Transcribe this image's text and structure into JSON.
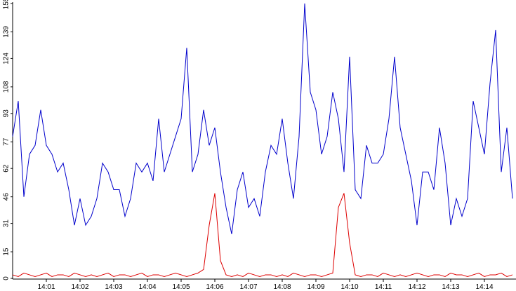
{
  "chart_data": {
    "type": "line",
    "categories": [
      null,
      null,
      null,
      null,
      null,
      null,
      "14:01",
      null,
      null,
      null,
      null,
      null,
      "14:02",
      null,
      null,
      null,
      null,
      null,
      "14:03",
      null,
      null,
      null,
      null,
      null,
      "14:04",
      null,
      null,
      null,
      null,
      null,
      "14:05",
      null,
      null,
      null,
      null,
      null,
      "14:06",
      null,
      null,
      null,
      null,
      null,
      "14:07",
      null,
      null,
      null,
      null,
      null,
      "14:08",
      null,
      null,
      null,
      null,
      null,
      "14:09",
      null,
      null,
      null,
      null,
      null,
      "14:10",
      null,
      null,
      null,
      null,
      null,
      "14:11",
      null,
      null,
      null,
      null,
      null,
      "14:12",
      null,
      null,
      null,
      null,
      null,
      "14:13",
      null,
      null,
      null,
      null,
      null,
      "14:14",
      null,
      null,
      null,
      null,
      null
    ],
    "series": [
      {
        "color": "#0000cc",
        "values": [
          80,
          100,
          46,
          70,
          75,
          95,
          75,
          70,
          60,
          65,
          50,
          30,
          45,
          30,
          35,
          45,
          65,
          60,
          50,
          50,
          35,
          45,
          65,
          60,
          65,
          55,
          90,
          60,
          70,
          80,
          90,
          130,
          60,
          70,
          95,
          75,
          85,
          60,
          40,
          25,
          50,
          60,
          40,
          45,
          35,
          60,
          75,
          70,
          90,
          65,
          45,
          80,
          155,
          105,
          95,
          70,
          80,
          105,
          90,
          60,
          125,
          50,
          45,
          75,
          65,
          65,
          70,
          90,
          125,
          85,
          70,
          55,
          30,
          60,
          60,
          50,
          85,
          65,
          30,
          45,
          35,
          45,
          100,
          85,
          70,
          110,
          140,
          60,
          85,
          45
        ]
      },
      {
        "color": "#dd0000",
        "values": [
          2,
          1,
          3,
          2,
          1,
          2,
          3,
          1,
          2,
          2,
          1,
          3,
          2,
          1,
          2,
          1,
          2,
          3,
          1,
          2,
          2,
          1,
          2,
          3,
          1,
          2,
          2,
          1,
          2,
          3,
          2,
          1,
          2,
          3,
          5,
          30,
          48,
          10,
          2,
          1,
          2,
          1,
          3,
          2,
          1,
          2,
          2,
          1,
          2,
          1,
          3,
          2,
          1,
          2,
          2,
          1,
          2,
          3,
          40,
          48,
          20,
          2,
          1,
          2,
          2,
          1,
          3,
          2,
          1,
          2,
          1,
          2,
          3,
          2,
          1,
          2,
          2,
          1,
          3,
          2,
          2,
          1,
          2,
          3,
          1,
          2,
          2,
          3,
          1,
          2
        ]
      }
    ],
    "ylim": [
      0,
      155
    ],
    "yticks": [
      0,
      15,
      31,
      46,
      62,
      77,
      93,
      108,
      124,
      139,
      155
    ]
  }
}
